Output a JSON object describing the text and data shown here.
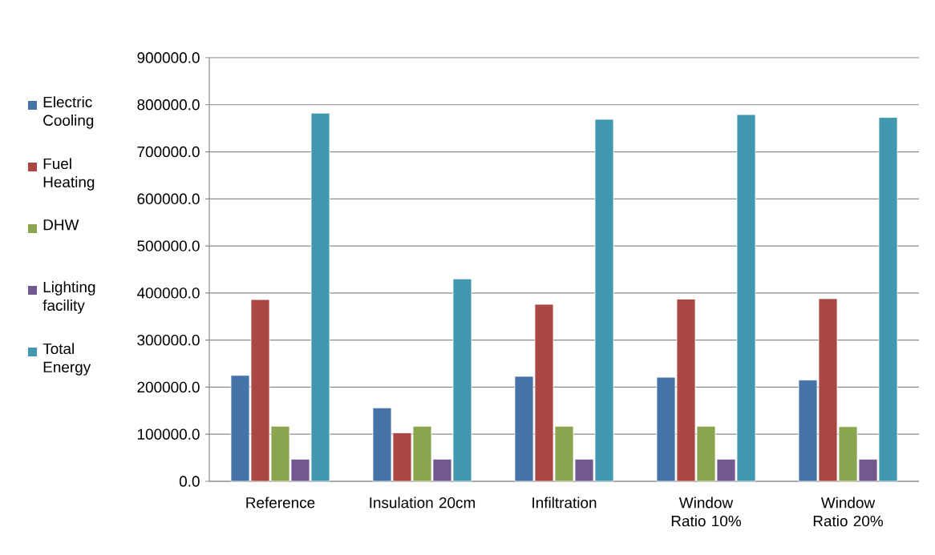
{
  "chart_data": {
    "type": "bar",
    "categories": [
      "Reference",
      "Insulation 20cm",
      "Infiltration",
      "Window Ratio 10%",
      "Window Ratio 20%"
    ],
    "series": [
      {
        "name": "Electric Cooling",
        "color": "#4572a7",
        "values": [
          225000,
          156000,
          223000,
          221000,
          215000
        ]
      },
      {
        "name": "Fuel Heating",
        "color": "#aa4643",
        "values": [
          386000,
          103000,
          376000,
          387000,
          388000
        ]
      },
      {
        "name": "DHW",
        "color": "#89a54e",
        "values": [
          117000,
          117000,
          117000,
          117000,
          116000
        ]
      },
      {
        "name": "Lighting facility",
        "color": "#71588f",
        "values": [
          47000,
          47000,
          47000,
          47000,
          47000
        ]
      },
      {
        "name": "Total Energy",
        "color": "#4198af",
        "values": [
          782000,
          430000,
          769000,
          779000,
          773000
        ]
      }
    ],
    "ylim": [
      0,
      900000
    ],
    "yticks": [
      {
        "value": 0,
        "label": "0.0"
      },
      {
        "value": 100000,
        "label": "100000.0"
      },
      {
        "value": 200000,
        "label": "200000.0"
      },
      {
        "value": 300000,
        "label": "300000.0"
      },
      {
        "value": 400000,
        "label": "400000.0"
      },
      {
        "value": 500000,
        "label": "500000.0"
      },
      {
        "value": 600000,
        "label": "600000.0"
      },
      {
        "value": 700000,
        "label": "700000.0"
      },
      {
        "value": 800000,
        "label": "800000.0"
      },
      {
        "value": 900000,
        "label": "900000.0"
      }
    ],
    "grid": "y",
    "legend": "left"
  }
}
